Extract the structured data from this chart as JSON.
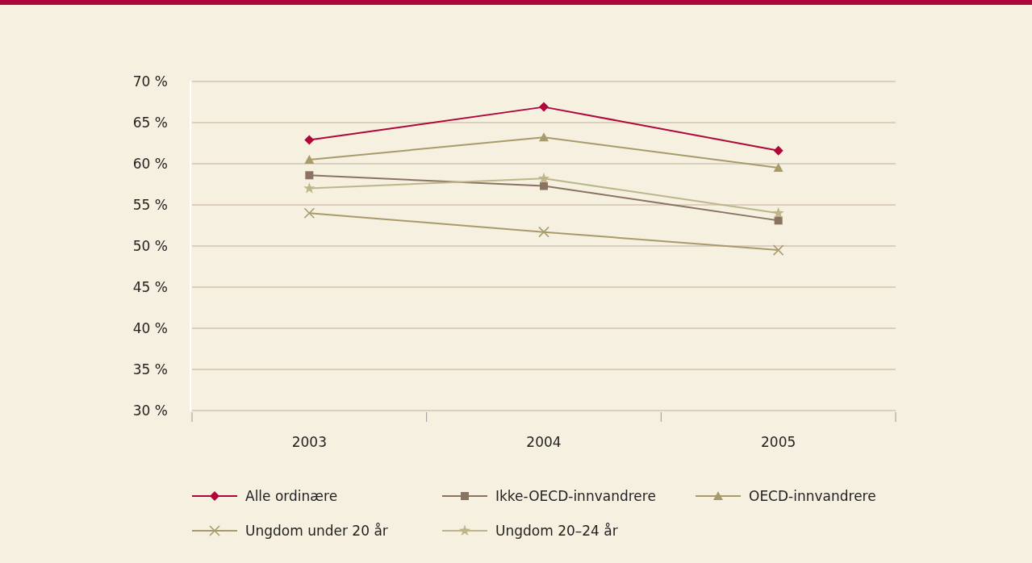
{
  "chart_data": {
    "type": "line",
    "categories": [
      "2003",
      "2004",
      "2005"
    ],
    "series": [
      {
        "name": "Alle ordinære",
        "color": "#b0063a",
        "marker": "diamond",
        "values": [
          62.9,
          66.9,
          61.6
        ]
      },
      {
        "name": "Ikke-OECD-innvandrere",
        "color": "#8a7361",
        "marker": "square",
        "values": [
          58.6,
          57.3,
          53.1
        ]
      },
      {
        "name": "OECD-innvandrere",
        "color": "#a89b6b",
        "marker": "triangle",
        "values": [
          60.5,
          63.2,
          59.5
        ]
      },
      {
        "name": "Ungdom under 20 år",
        "color": "#a89b6b",
        "marker": "cross",
        "values": [
          54.0,
          51.7,
          49.5
        ]
      },
      {
        "name": "Ungdom 20–24 år",
        "color": "#bdb68a",
        "marker": "star",
        "values": [
          57.0,
          58.2,
          54.0
        ]
      }
    ],
    "ylim": [
      30,
      70
    ],
    "yticks": [
      {
        "value": 30,
        "label": "30 %"
      },
      {
        "value": 35,
        "label": "35 %"
      },
      {
        "value": 40,
        "label": "40 %"
      },
      {
        "value": 45,
        "label": "45 %"
      },
      {
        "value": 50,
        "label": "50 %"
      },
      {
        "value": 55,
        "label": "55 %"
      },
      {
        "value": 60,
        "label": "60 %"
      },
      {
        "value": 65,
        "label": "65 %"
      },
      {
        "value": 70,
        "label": "70 %"
      }
    ],
    "grid": "y",
    "legend": "bottom",
    "line_style": "solid"
  }
}
